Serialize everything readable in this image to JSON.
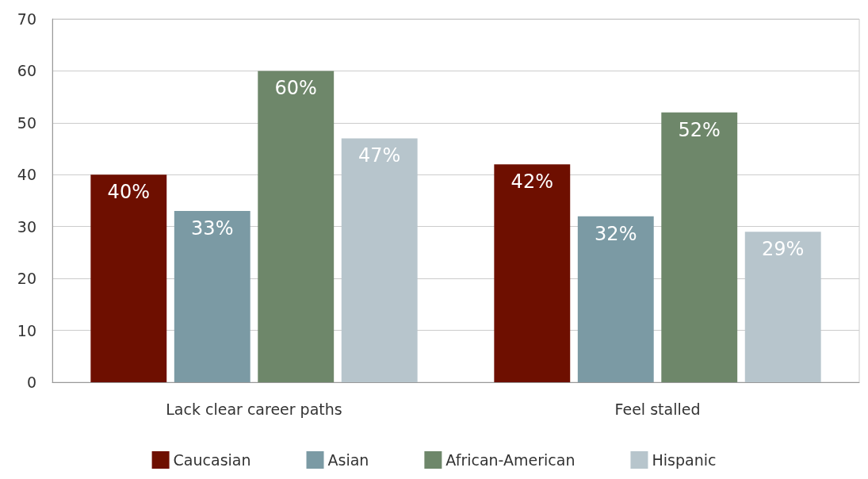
{
  "chart_data": {
    "type": "bar",
    "categories": [
      "Lack clear career paths",
      "Feel stalled"
    ],
    "series": [
      {
        "name": "Caucasian",
        "color": "#6e0f00",
        "values": [
          40,
          42
        ],
        "value_labels": [
          "40%",
          "42%"
        ]
      },
      {
        "name": "Asian",
        "color": "#7b9aa4",
        "values": [
          33,
          32
        ],
        "value_labels": [
          "33%",
          "32%"
        ]
      },
      {
        "name": "African-American",
        "color": "#6e876a",
        "values": [
          60,
          52
        ],
        "value_labels": [
          "60%",
          "52%"
        ]
      },
      {
        "name": "Hispanic",
        "color": "#b7c5cc",
        "values": [
          47,
          29
        ],
        "value_labels": [
          "47%",
          "29%"
        ]
      }
    ],
    "ylim": [
      0,
      70
    ],
    "yticks": [
      0,
      10,
      20,
      30,
      40,
      50,
      60,
      70
    ],
    "grid": "y",
    "legend": "bottom"
  }
}
